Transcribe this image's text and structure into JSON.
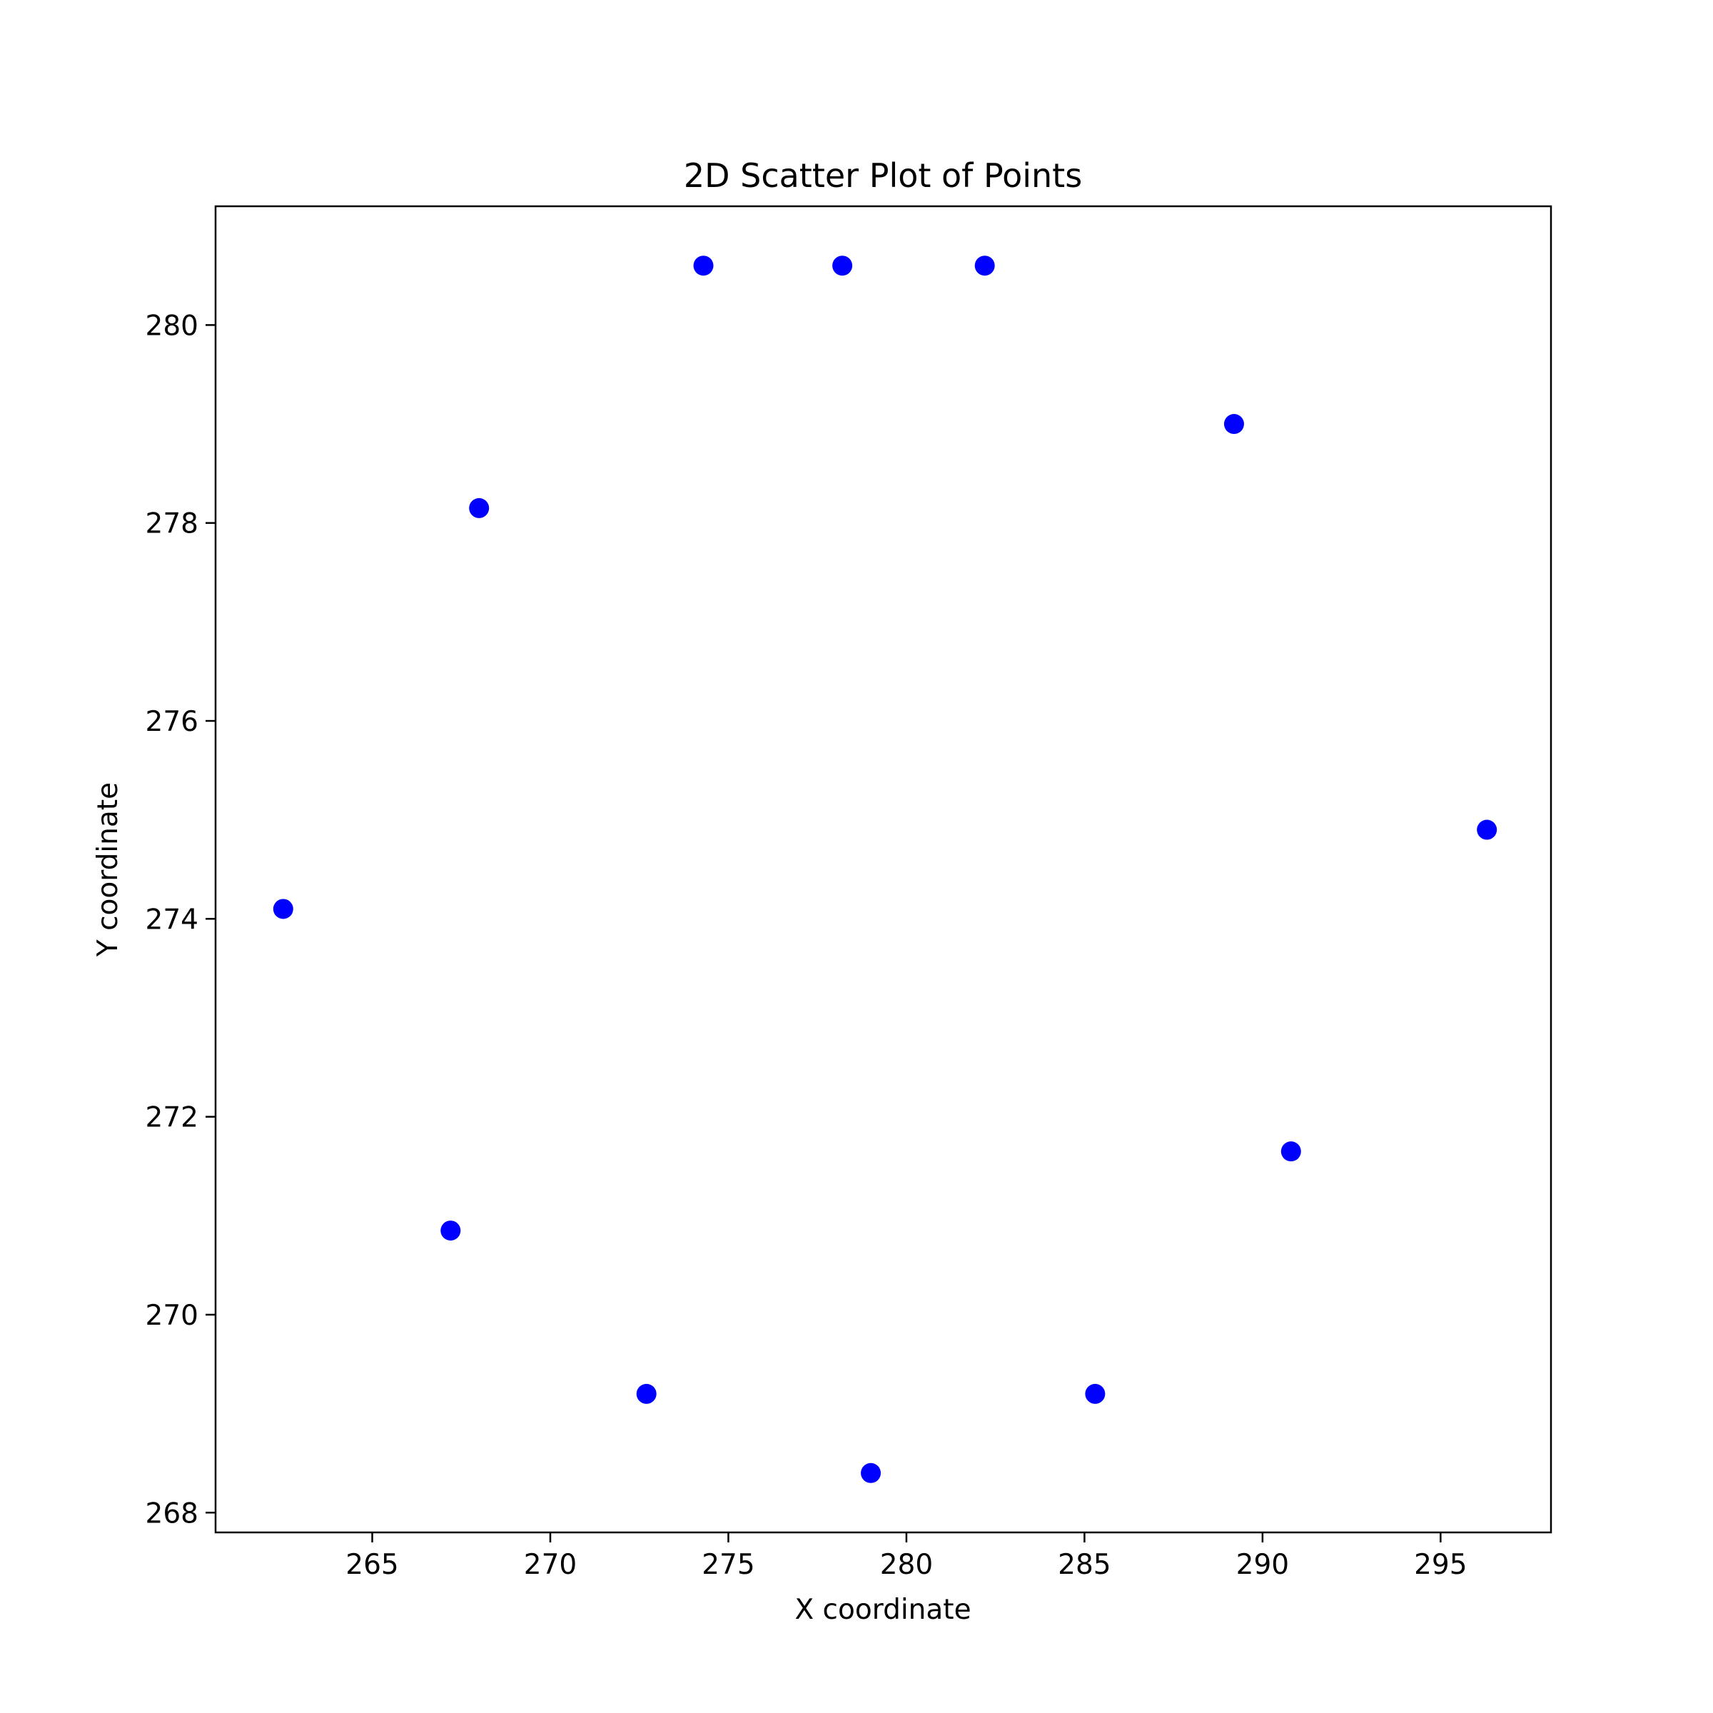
{
  "chart_data": {
    "type": "scatter",
    "title": "2D Scatter Plot of Points",
    "xlabel": "X coordinate",
    "ylabel": "Y coordinate",
    "xlim": [
      260.6,
      298.1
    ],
    "ylim": [
      267.8,
      281.2
    ],
    "xticks": [
      265,
      270,
      275,
      280,
      285,
      290,
      295
    ],
    "yticks": [
      268,
      270,
      272,
      274,
      276,
      278,
      280
    ],
    "grid": false,
    "marker_color": "#0000ff",
    "points": [
      {
        "x": 274.3,
        "y": 280.6
      },
      {
        "x": 278.2,
        "y": 280.6
      },
      {
        "x": 282.2,
        "y": 280.6
      },
      {
        "x": 289.2,
        "y": 279.0
      },
      {
        "x": 268.0,
        "y": 278.15
      },
      {
        "x": 296.3,
        "y": 274.9
      },
      {
        "x": 262.5,
        "y": 274.1
      },
      {
        "x": 290.8,
        "y": 271.65
      },
      {
        "x": 267.2,
        "y": 270.85
      },
      {
        "x": 272.7,
        "y": 269.2
      },
      {
        "x": 285.3,
        "y": 269.2
      },
      {
        "x": 279.0,
        "y": 268.4
      }
    ]
  }
}
